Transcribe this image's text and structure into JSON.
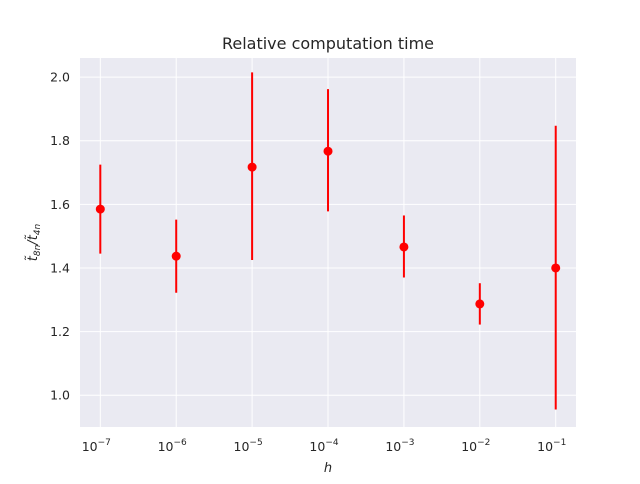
{
  "chart_data": {
    "type": "scatter",
    "title": "Relative computation time",
    "xlabel": "h",
    "ylabel": "t̃8n / t̃4n",
    "x_scale": "log",
    "x_tick_exponents": [
      -7,
      -6,
      -5,
      -4,
      -3,
      -2,
      -1
    ],
    "x_tick_base": "10",
    "xlim": [
      5.4e-08,
      0.185
    ],
    "y_ticks": [
      "1.0",
      "1.2",
      "1.4",
      "1.6",
      "1.8",
      "2.0"
    ],
    "ylim": [
      0.9,
      2.06
    ],
    "grid": true,
    "style": "seaborn-darkgrid",
    "series": [
      {
        "color": "#ff0000",
        "x": [
          1e-07,
          1e-06,
          1e-05,
          0.0001,
          0.001,
          0.01,
          0.1
        ],
        "y": [
          1.585,
          1.437,
          1.717,
          1.767,
          1.466,
          1.287,
          1.4
        ],
        "y_low": [
          1.445,
          1.322,
          1.425,
          1.578,
          1.37,
          1.222,
          0.955
        ],
        "y_high": [
          1.725,
          1.552,
          2.015,
          1.962,
          1.565,
          1.352,
          1.847
        ]
      }
    ]
  }
}
